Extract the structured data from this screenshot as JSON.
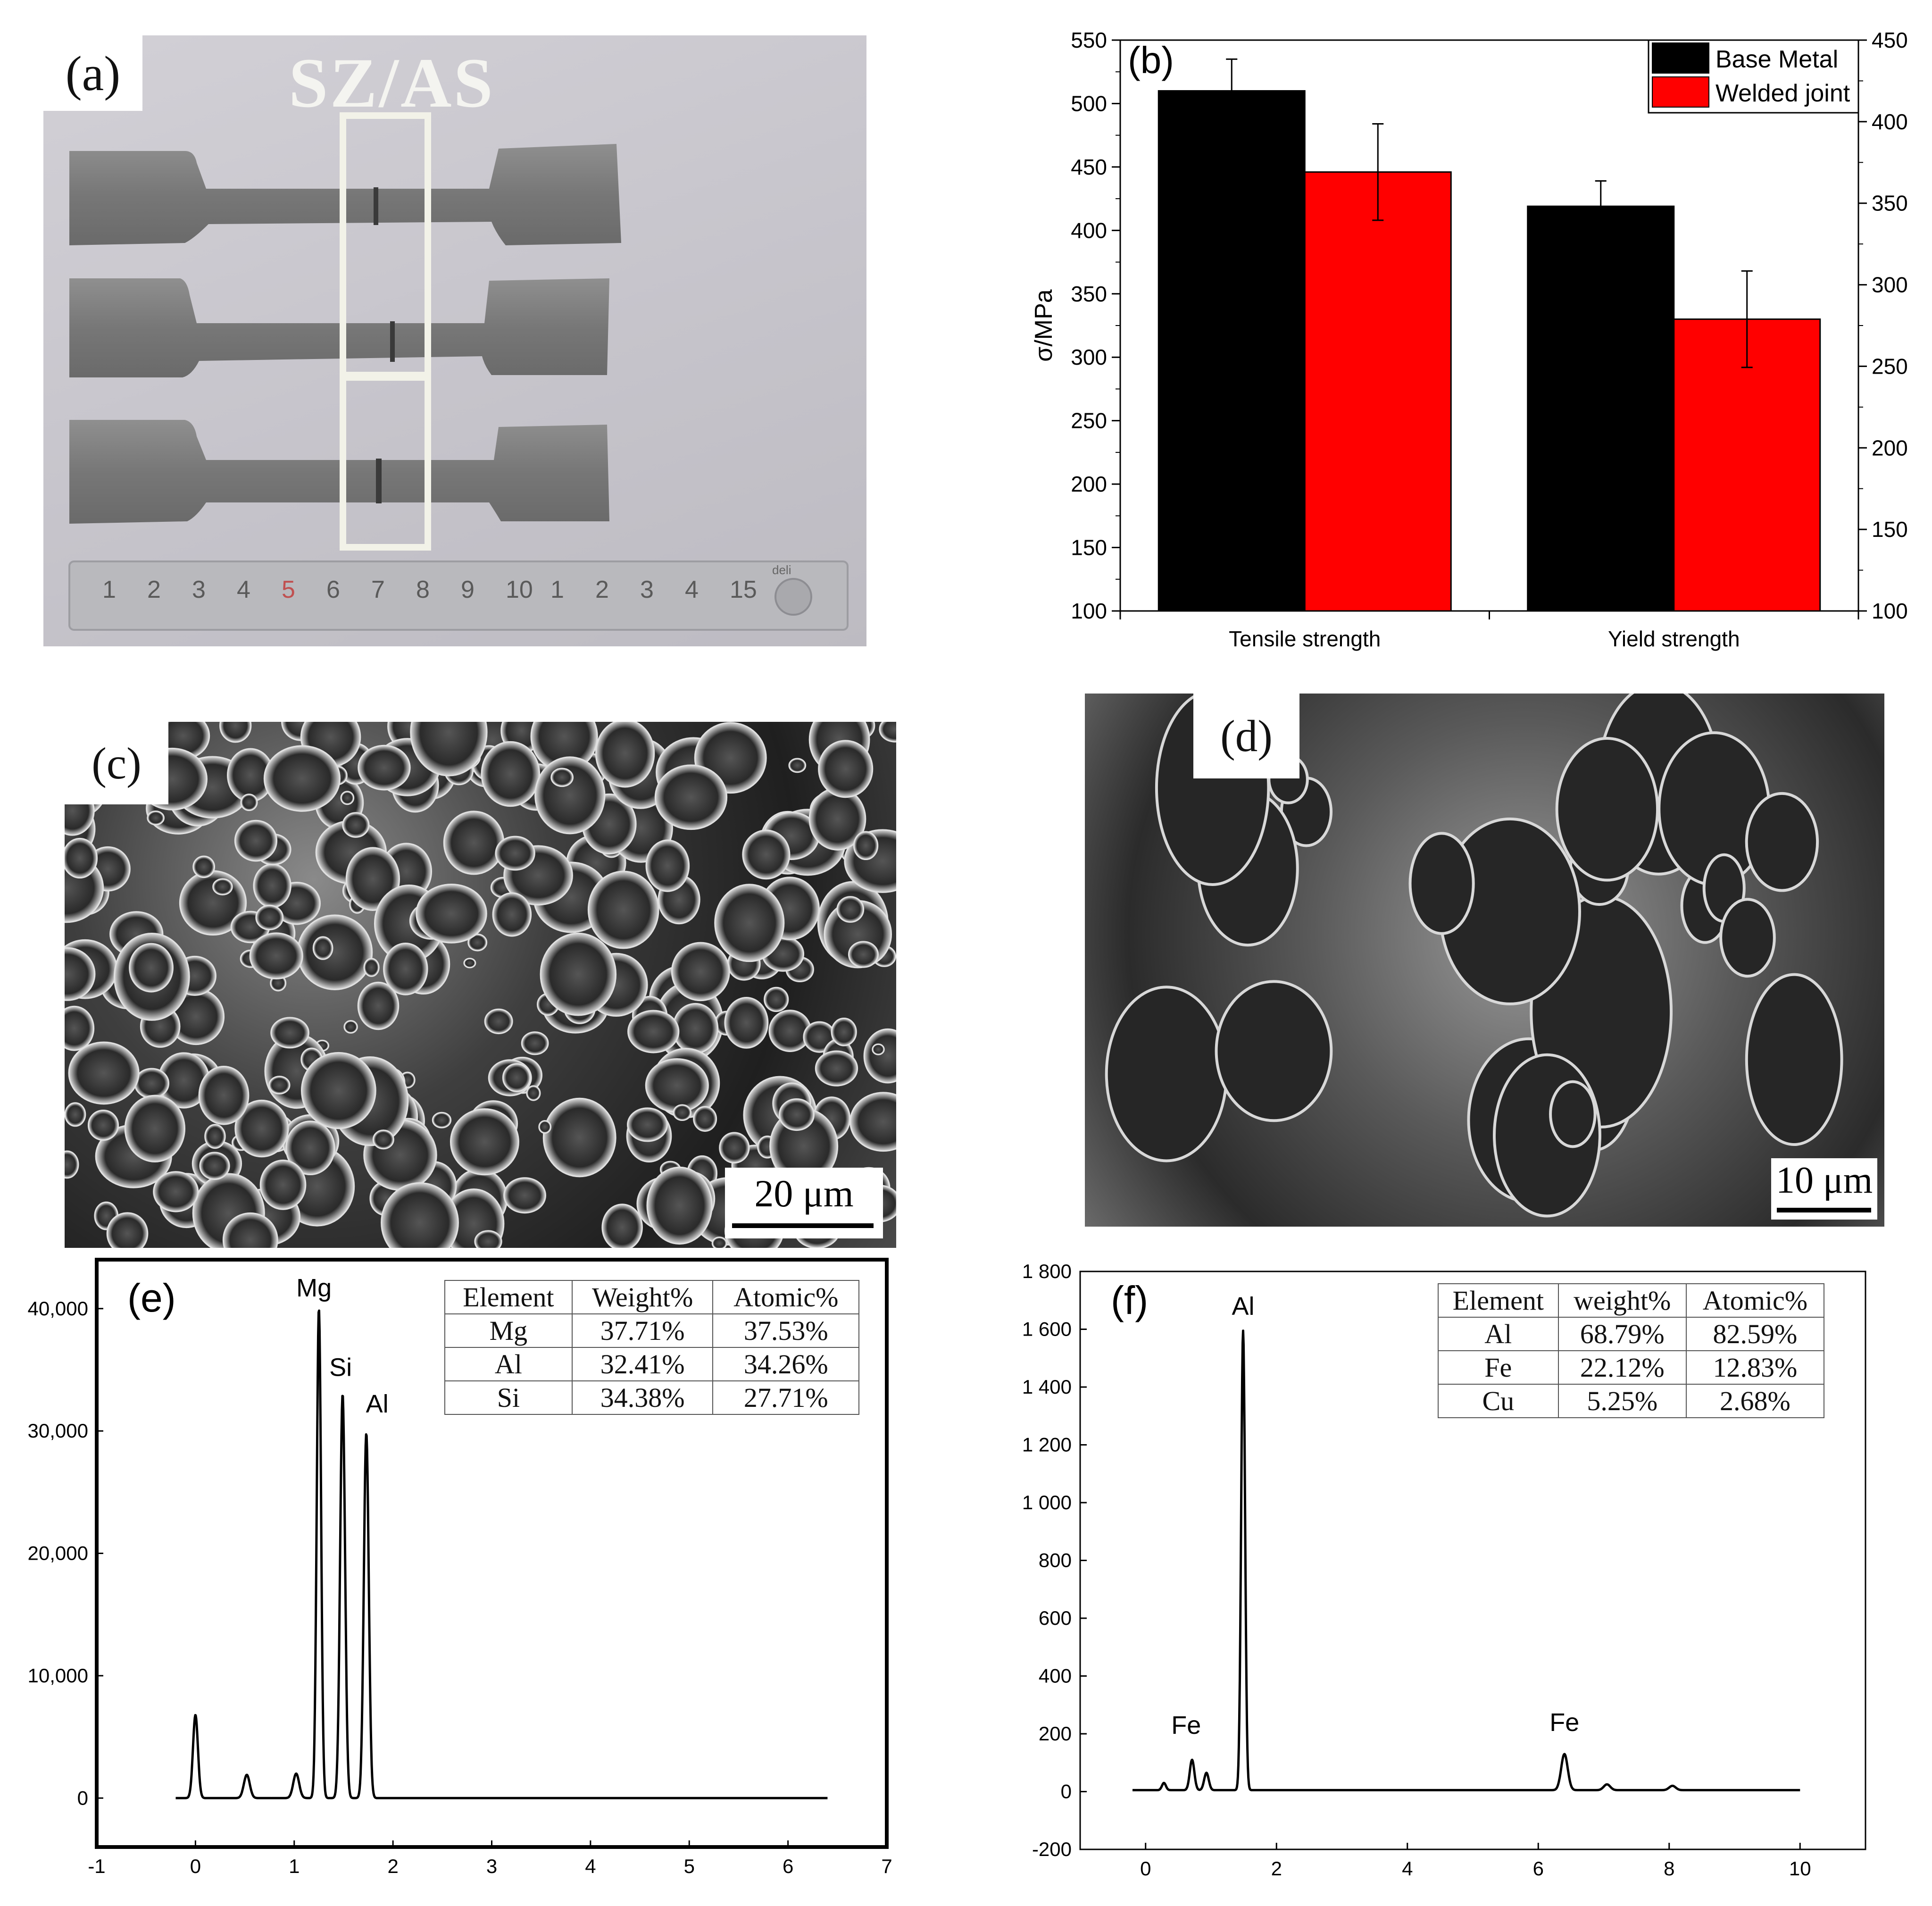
{
  "panel_a": {
    "label": "(a)",
    "overlay_text": "SZ/AS",
    "ruler_numbers": [
      "1",
      "2",
      "3",
      "4",
      "5",
      "6",
      "7",
      "8",
      "9",
      "10",
      "1",
      "2",
      "3",
      "4",
      "15"
    ],
    "ruler_brand": "deli"
  },
  "panel_c": {
    "label": "(c)",
    "scale_bar": "20 μm"
  },
  "panel_d": {
    "label": "(d)",
    "scale_bar": "10 μm"
  },
  "chart_data": [
    {
      "id": "b",
      "type": "bar",
      "panel_label": "(b)",
      "categories": [
        "Tensile strength",
        "Yield strength"
      ],
      "series": [
        {
          "name": "Base Metal",
          "color": "#000000",
          "values": [
            510,
            419
          ],
          "errors": [
            25,
            20
          ]
        },
        {
          "name": "Welded joint",
          "color": "#ff0000",
          "values": [
            446,
            330
          ],
          "errors": [
            38,
            38
          ]
        }
      ],
      "ylabel": "σ/MPa",
      "ylim": [
        100,
        550
      ],
      "yticks": [
        100,
        150,
        200,
        250,
        300,
        350,
        400,
        450,
        500,
        550
      ],
      "y2lim": [
        100,
        450
      ],
      "y2ticks": [
        100,
        150,
        200,
        250,
        300,
        350,
        400,
        450
      ],
      "legend": "top-right"
    },
    {
      "id": "e",
      "type": "line",
      "panel_label": "(e)",
      "xlim": [
        -1,
        7
      ],
      "xticks": [
        -1,
        0,
        1,
        2,
        3,
        4,
        5,
        6,
        7
      ],
      "ylim": [
        -4000,
        44000
      ],
      "yticks": [
        0,
        10000,
        20000,
        30000,
        40000
      ],
      "ytick_labels": [
        "0",
        "10,000",
        "20,000",
        "30,000",
        "40,000"
      ],
      "x_range": [
        -0.2,
        6.4
      ],
      "baseline": 0,
      "peaks": [
        {
          "x": 0.0,
          "y": 6800,
          "w": 0.025
        },
        {
          "x": 0.52,
          "y": 1900,
          "w": 0.03
        },
        {
          "x": 1.02,
          "y": 2000,
          "w": 0.03
        },
        {
          "x": 1.25,
          "y": 40000,
          "w": 0.022
        },
        {
          "x": 1.49,
          "y": 33000,
          "w": 0.025
        },
        {
          "x": 1.73,
          "y": 29800,
          "w": 0.025
        }
      ],
      "peak_labels": [
        {
          "text": "Mg",
          "x": 1.2,
          "y": 41000
        },
        {
          "text": "Si",
          "x": 1.47,
          "y": 34500
        },
        {
          "text": "Al",
          "x": 1.84,
          "y": 31500
        }
      ],
      "table": {
        "headers": [
          "Element",
          "Weight%",
          "Atomic%"
        ],
        "rows": [
          [
            "Mg",
            "37.71%",
            "37.53%"
          ],
          [
            "Al",
            "32.41%",
            "34.26%"
          ],
          [
            "Si",
            "34.38%",
            "27.71%"
          ]
        ]
      }
    },
    {
      "id": "f",
      "type": "line",
      "panel_label": "(f)",
      "xlim": [
        -1,
        11
      ],
      "xticks": [
        0,
        2,
        4,
        6,
        8,
        10
      ],
      "ylim": [
        -200,
        1800
      ],
      "yticks": [
        -200,
        0,
        200,
        400,
        600,
        800,
        1000,
        1200,
        1400,
        1600,
        1800
      ],
      "ytick_labels": [
        "-200",
        "0",
        "200",
        "400",
        "600",
        "800",
        "1 000",
        "1 200",
        "1 400",
        "1 600",
        "1 800"
      ],
      "x_range": [
        -0.2,
        10.0
      ],
      "baseline": 5,
      "peaks": [
        {
          "x": 0.28,
          "y": 25,
          "w": 0.03
        },
        {
          "x": 0.71,
          "y": 105,
          "w": 0.035
        },
        {
          "x": 0.93,
          "y": 60,
          "w": 0.035
        },
        {
          "x": 1.49,
          "y": 1590,
          "w": 0.03
        },
        {
          "x": 6.4,
          "y": 125,
          "w": 0.05
        },
        {
          "x": 7.05,
          "y": 20,
          "w": 0.05
        },
        {
          "x": 8.05,
          "y": 15,
          "w": 0.05
        }
      ],
      "peak_labels": [
        {
          "text": "Al",
          "x": 1.49,
          "y": 1650
        },
        {
          "text": "Fe",
          "x": 0.62,
          "y": 200
        },
        {
          "text": "Fe",
          "x": 6.4,
          "y": 210
        }
      ],
      "table": {
        "headers": [
          "Element",
          "weight%",
          "Atomic%"
        ],
        "rows": [
          [
            "Al",
            "68.79%",
            "82.59%"
          ],
          [
            "Fe",
            "22.12%",
            "12.83%"
          ],
          [
            "Cu",
            "5.25%",
            "2.68%"
          ]
        ]
      }
    }
  ]
}
